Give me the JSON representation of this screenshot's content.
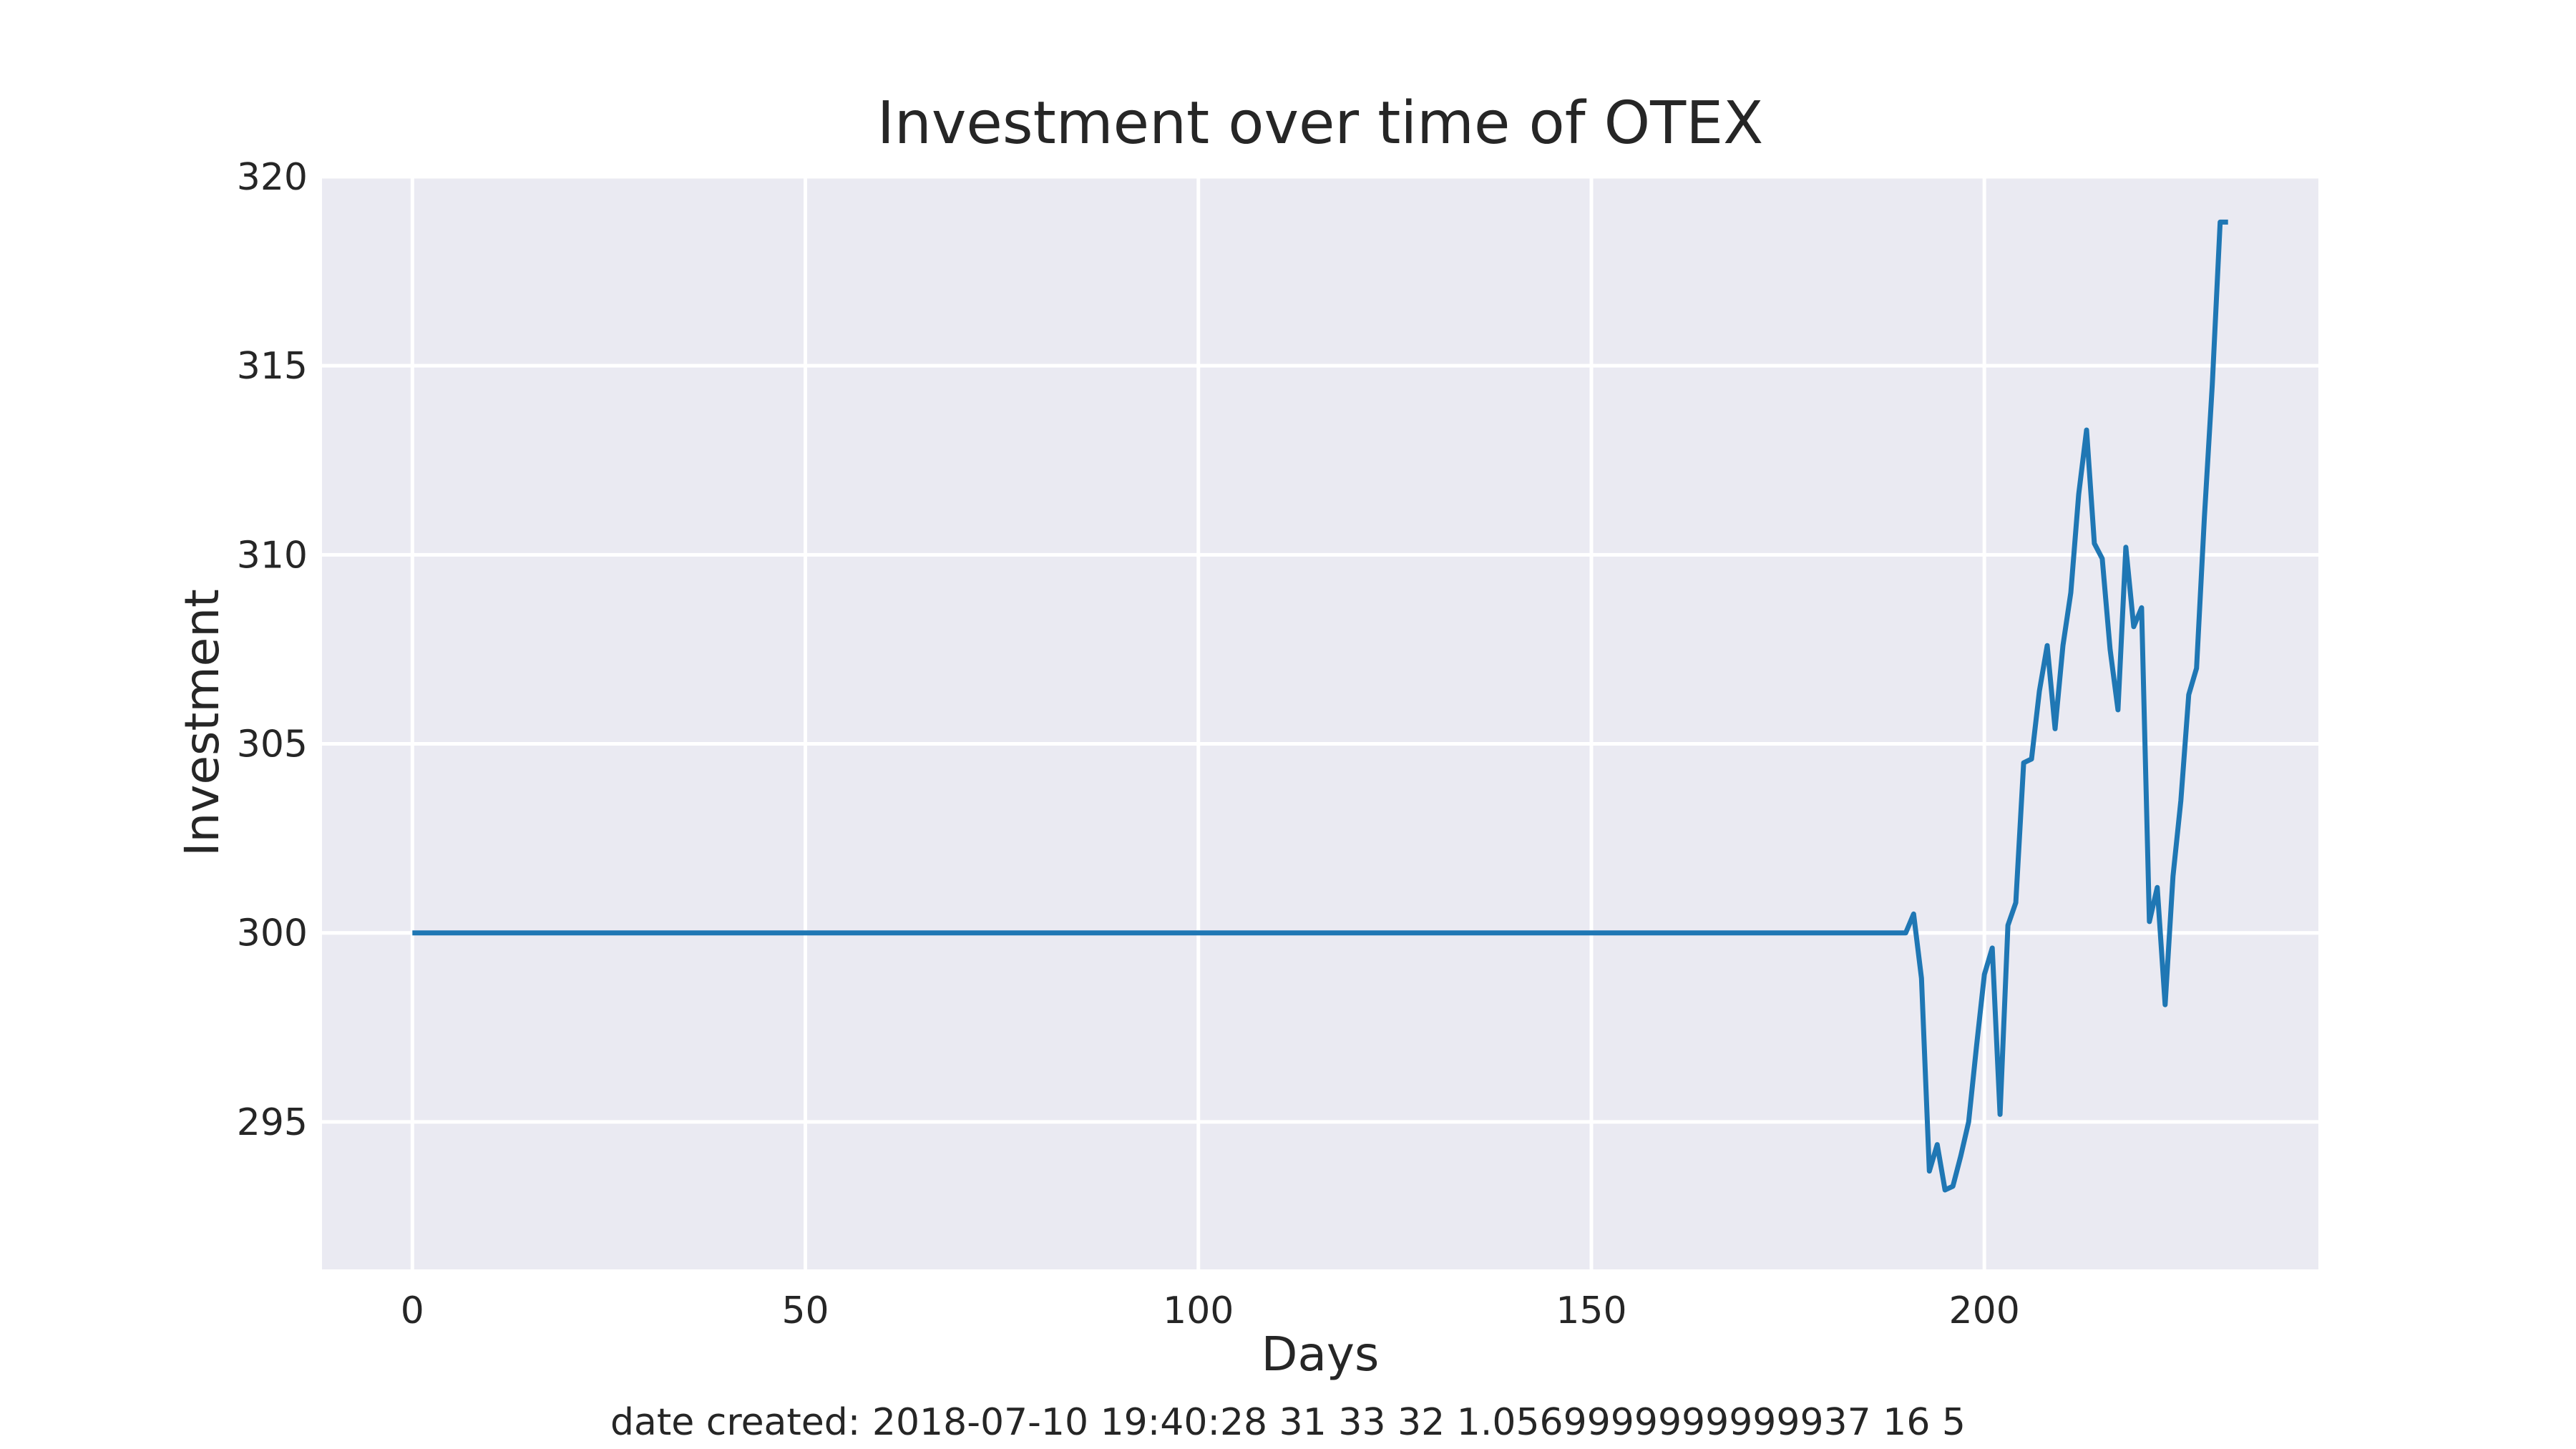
{
  "chart_data": {
    "type": "line",
    "title": "Investment over time of OTEX",
    "xlabel": "Days",
    "ylabel": "Investment",
    "footer": "date created: 2018-07-10 19:40:28 31 33 32 1.0569999999999937 16 5",
    "xlim": [
      -11.5,
      242.5
    ],
    "ylim": [
      291.1,
      320.0
    ],
    "xticks": [
      0,
      50,
      100,
      150,
      200
    ],
    "yticks": [
      295,
      300,
      305,
      310,
      315,
      320
    ],
    "grid": true,
    "colors": {
      "line": "#1f77b4",
      "axes_bg": "#eaeaf2",
      "grid": "#ffffff",
      "text": "#262626"
    },
    "series": [
      {
        "x": [
          0,
          190,
          191,
          192,
          193,
          194,
          195,
          196,
          197,
          198,
          199,
          200,
          201,
          202,
          203,
          204,
          205,
          206,
          207,
          208,
          209,
          210,
          211,
          212,
          213,
          214,
          215,
          216,
          217,
          218,
          219,
          220,
          221,
          222,
          223,
          224,
          225,
          226,
          227,
          228,
          229,
          230,
          231
        ],
        "y": [
          300.0,
          300.0,
          300.5,
          298.8,
          293.7,
          294.4,
          293.2,
          293.3,
          294.1,
          295.0,
          297.0,
          298.9,
          299.6,
          295.2,
          300.2,
          300.8,
          304.5,
          304.6,
          306.4,
          307.6,
          305.4,
          307.6,
          309.0,
          311.6,
          313.3,
          310.3,
          309.9,
          307.5,
          305.9,
          310.2,
          308.1,
          308.6,
          300.3,
          301.2,
          298.1,
          301.5,
          303.5,
          306.3,
          307.0,
          311.0,
          314.5,
          318.8,
          318.8
        ]
      }
    ]
  }
}
